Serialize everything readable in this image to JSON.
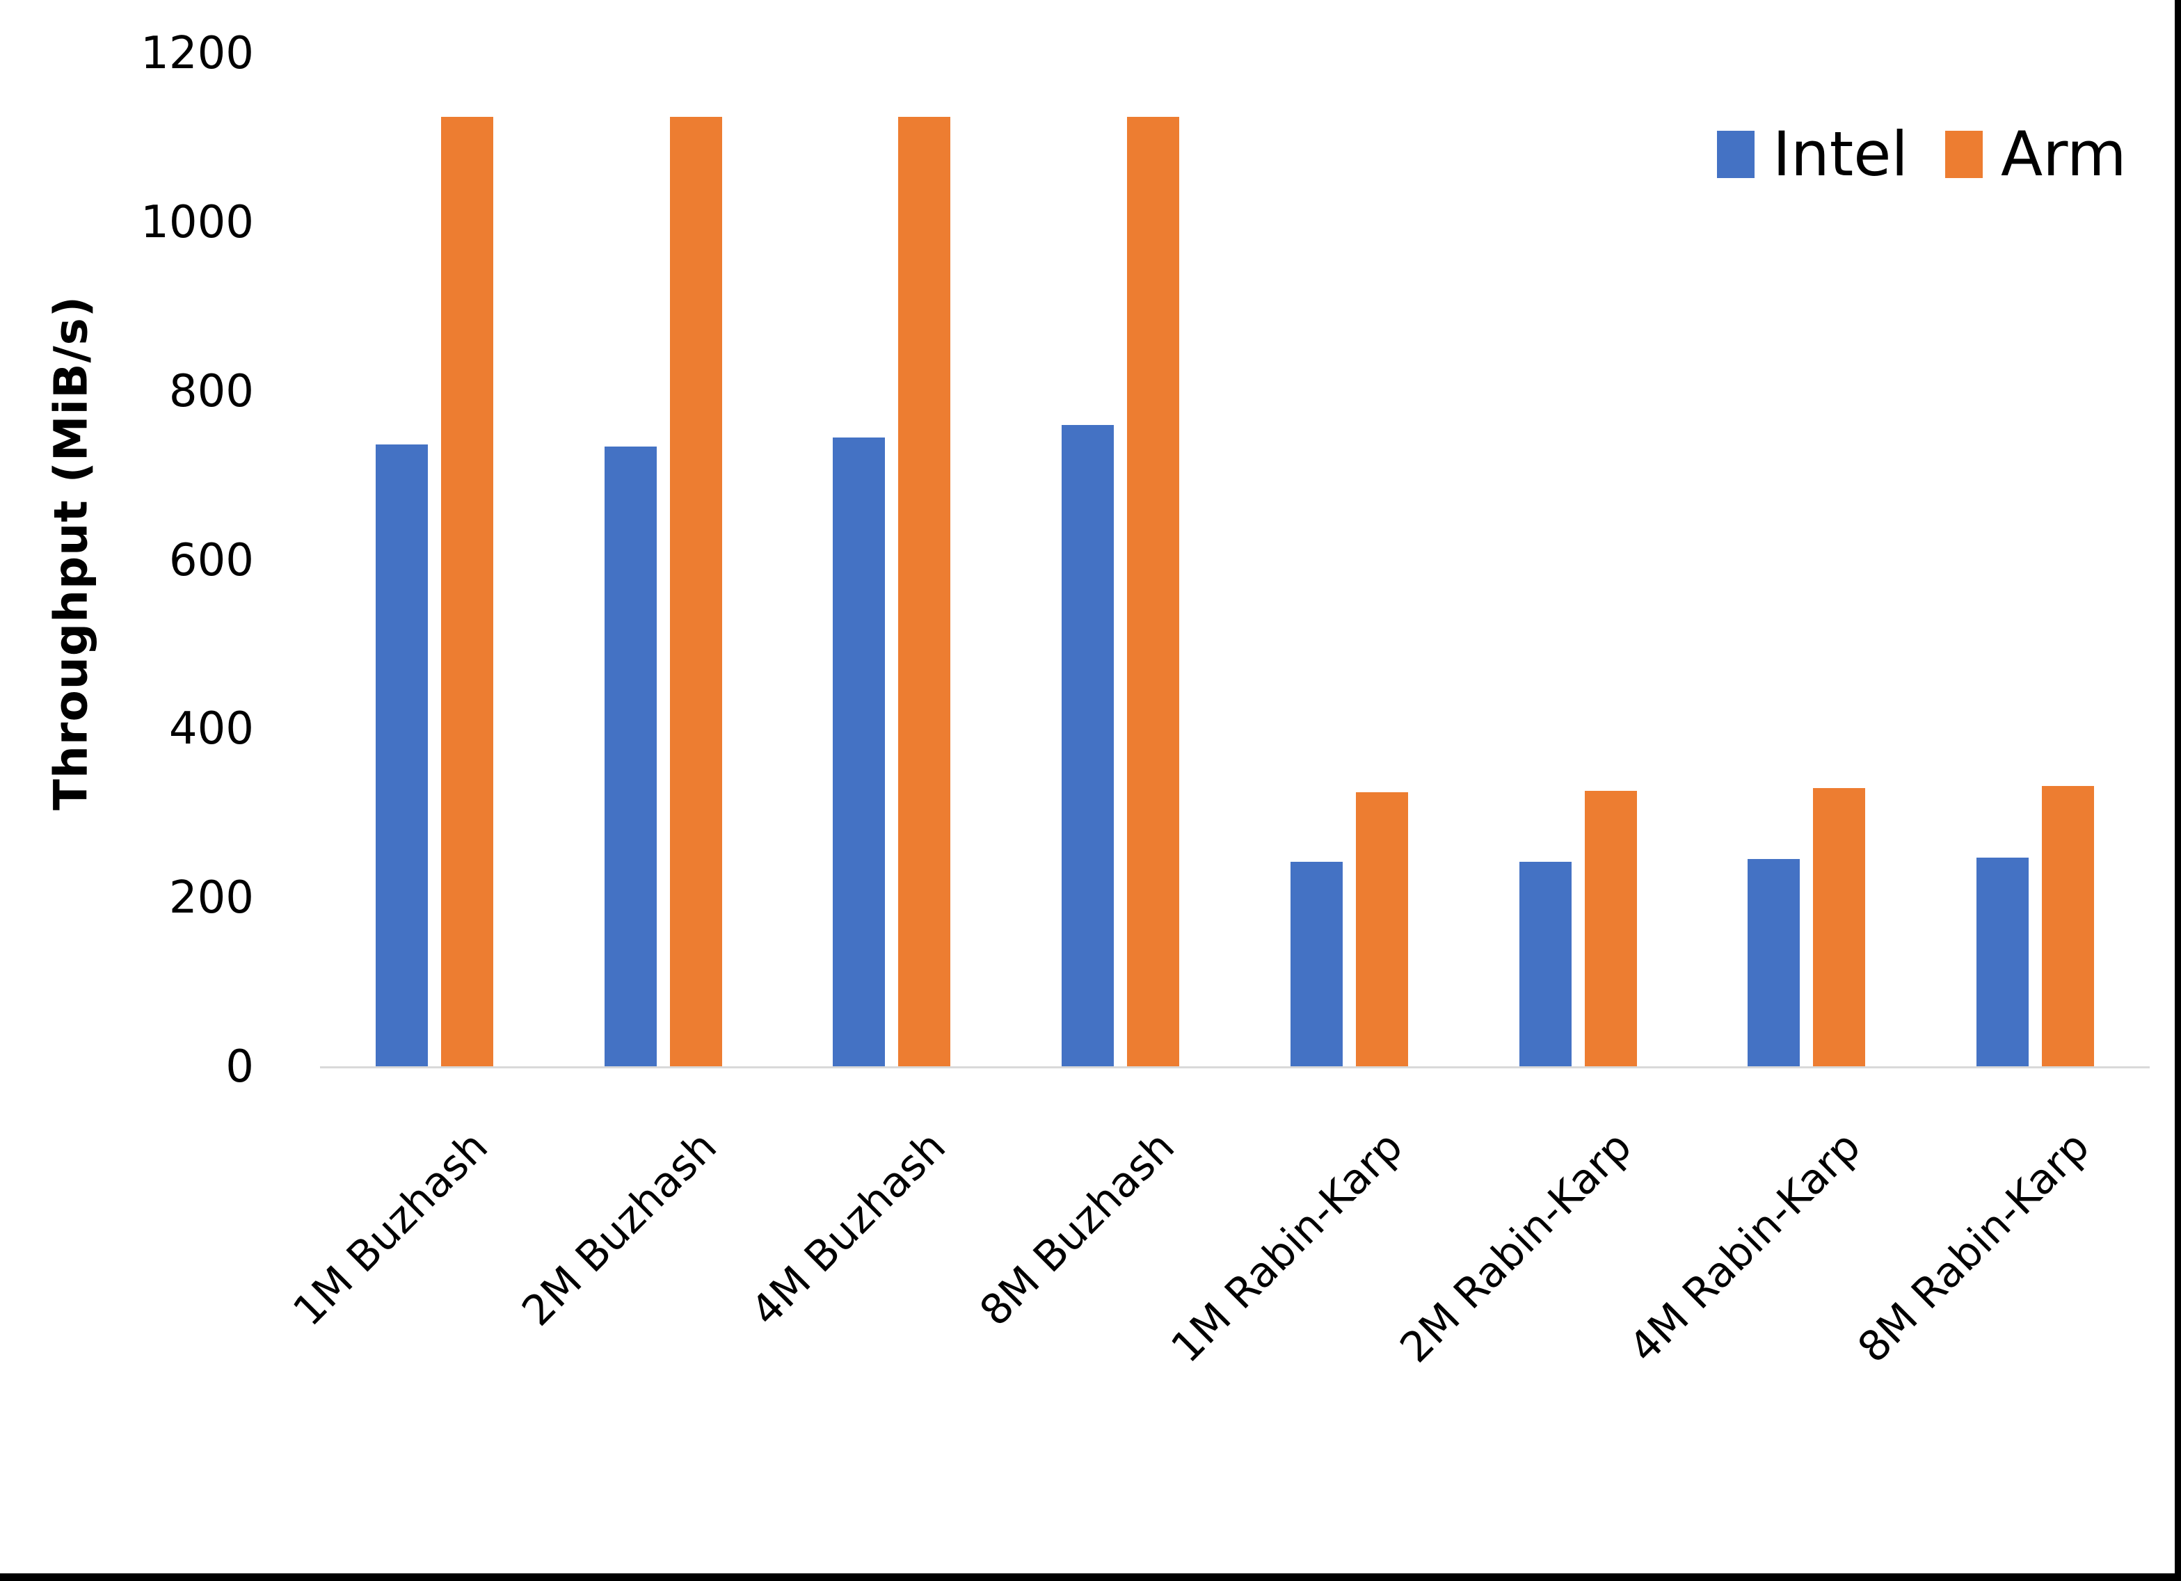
{
  "chart_data": {
    "type": "bar",
    "title": "",
    "xlabel": "",
    "ylabel": "Throughput (MiB/s)",
    "ylim": [
      0,
      1200
    ],
    "yticks": [
      0,
      200,
      400,
      600,
      800,
      1000,
      1200
    ],
    "grid": false,
    "legend_position": "top-right",
    "axis_line_color": "#d9d9d9",
    "categories": [
      "1M Buzhash",
      "2M Buzhash",
      "4M Buzhash",
      "8M Buzhash",
      "1M Rabin-Karp",
      "2M Rabin-Karp",
      "4M Rabin-Karp",
      "8M Rabin-Karp"
    ],
    "series": [
      {
        "name": "Intel",
        "color": "#4472C4",
        "values": [
          737,
          735,
          745,
          760,
          243,
          243,
          246,
          248
        ]
      },
      {
        "name": "Arm",
        "color": "#ED7D31",
        "values": [
          1125,
          1125,
          1125,
          1125,
          325,
          327,
          330,
          333
        ]
      }
    ]
  }
}
